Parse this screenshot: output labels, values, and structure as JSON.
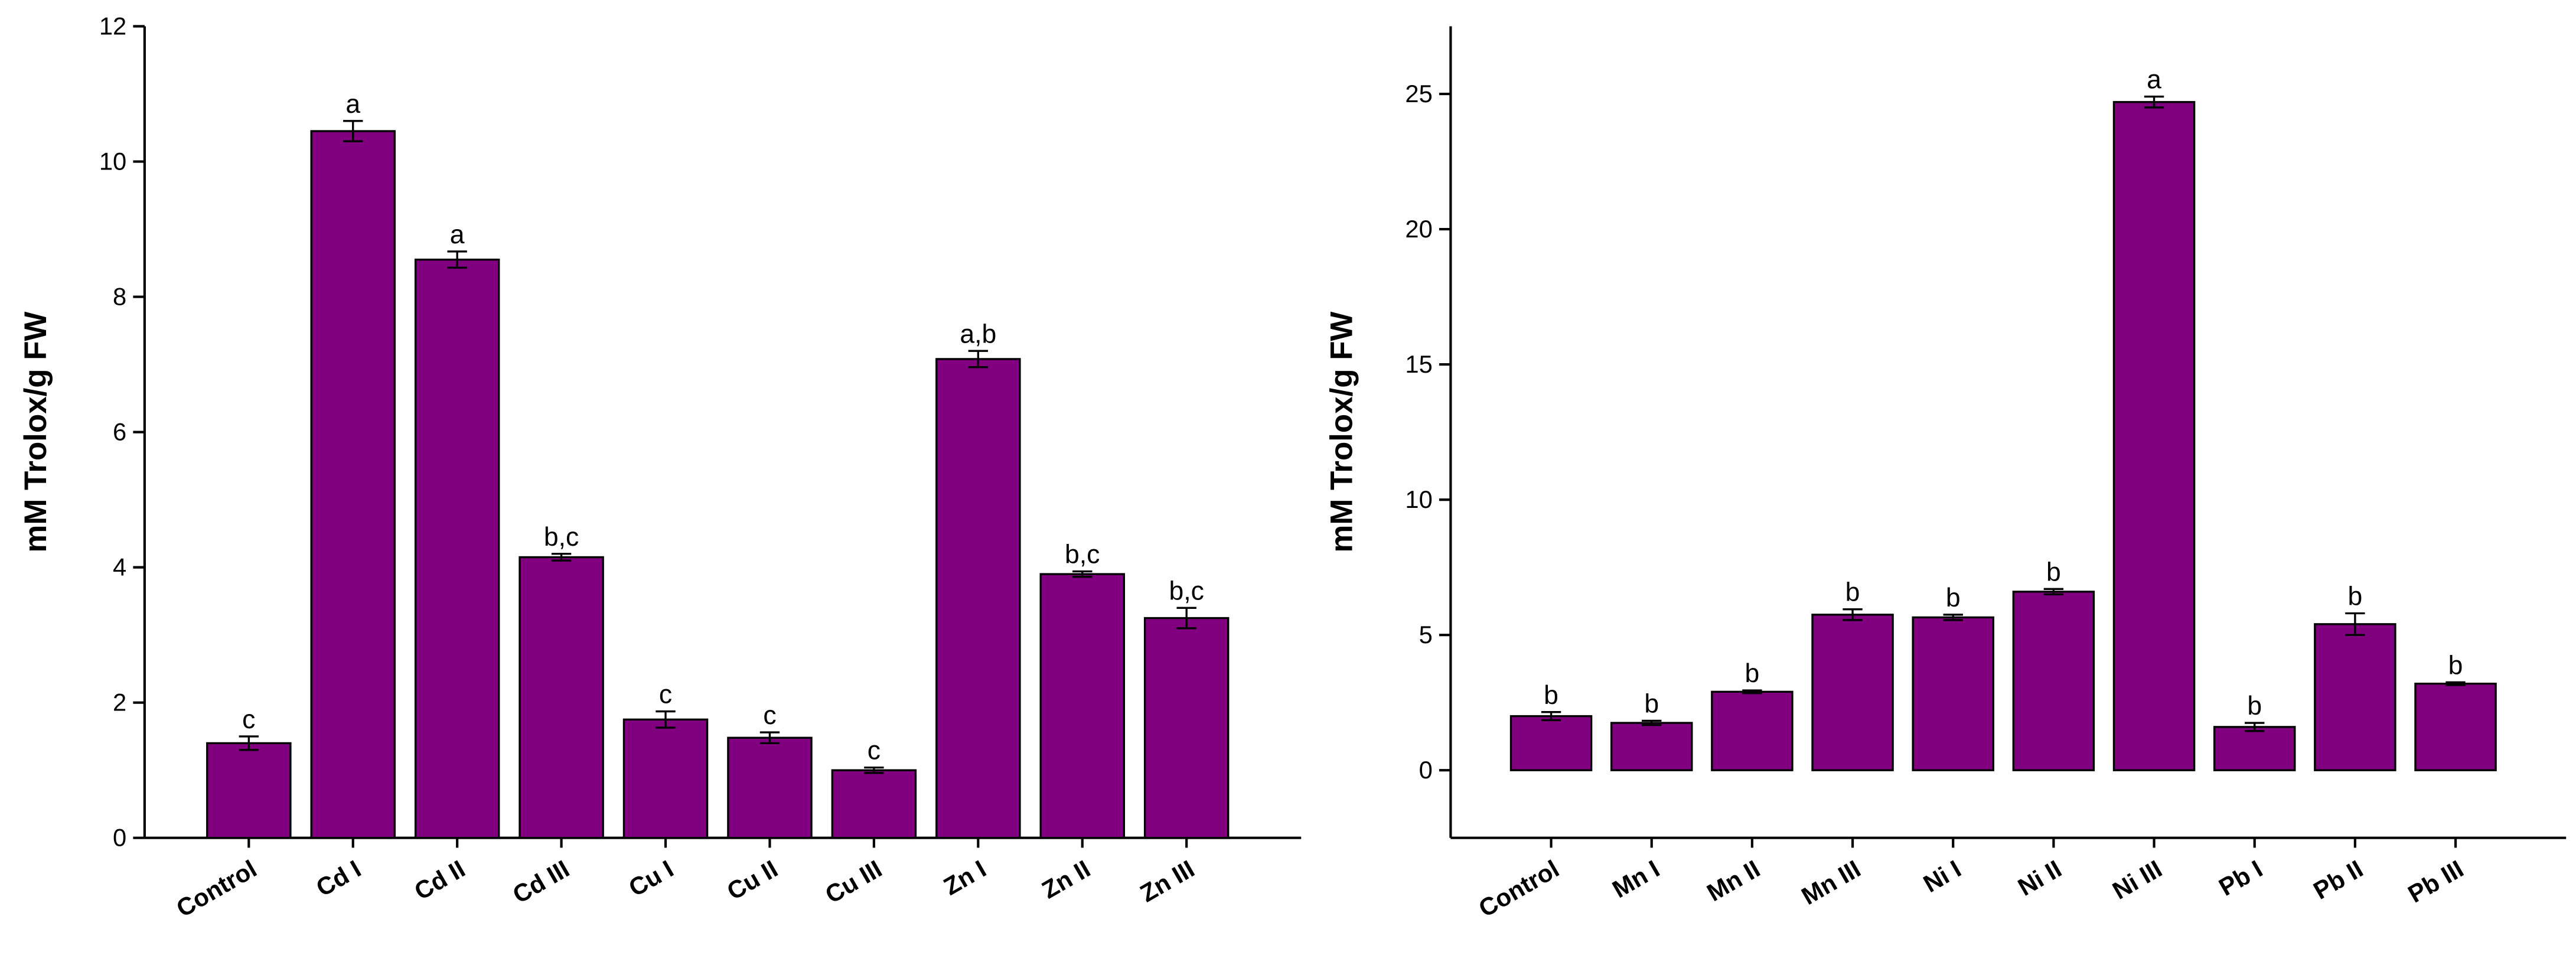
{
  "chart_data": [
    {
      "type": "bar",
      "y_label": "mM Trolox/g FW",
      "color": "#800080",
      "categories": [
        "Control",
        "Cd I",
        "Cd II",
        "Cd III",
        "Cu I",
        "Cu II",
        "Cu III",
        "Zn I",
        "Zn II",
        "Zn III"
      ],
      "values": [
        1.4,
        10.45,
        8.55,
        4.15,
        1.75,
        1.48,
        1.0,
        7.08,
        3.9,
        3.25
      ],
      "errors": [
        0.1,
        0.15,
        0.12,
        0.05,
        0.12,
        0.08,
        0.04,
        0.12,
        0.04,
        0.15
      ],
      "annotations": [
        "c",
        "a",
        "a",
        "b,c",
        "c",
        "c",
        "c",
        "a,b",
        "b,c",
        "b,c"
      ],
      "ylim": [
        0,
        12
      ],
      "yticks": [
        0,
        2,
        4,
        6,
        8,
        10,
        12
      ]
    },
    {
      "type": "bar",
      "y_label": "mM Trolox/g FW",
      "color": "#800080",
      "categories": [
        "Control",
        "Mn I",
        "Mn II",
        "Mn III",
        "Ni I",
        "Ni II",
        "Ni III",
        "Pb I",
        "Pb II",
        "Pb III"
      ],
      "values": [
        2.0,
        1.75,
        2.9,
        5.75,
        5.65,
        6.6,
        24.7,
        1.6,
        5.4,
        3.2
      ],
      "errors": [
        0.15,
        0.08,
        0.05,
        0.2,
        0.1,
        0.1,
        0.2,
        0.15,
        0.4,
        0.05
      ],
      "annotations": [
        "b",
        "b",
        "b",
        "b",
        "b",
        "b",
        "a",
        "b",
        "b",
        "b"
      ],
      "ylim": [
        -2.5,
        27.5
      ],
      "yticks": [
        0,
        5,
        10,
        15,
        20,
        25
      ]
    }
  ]
}
